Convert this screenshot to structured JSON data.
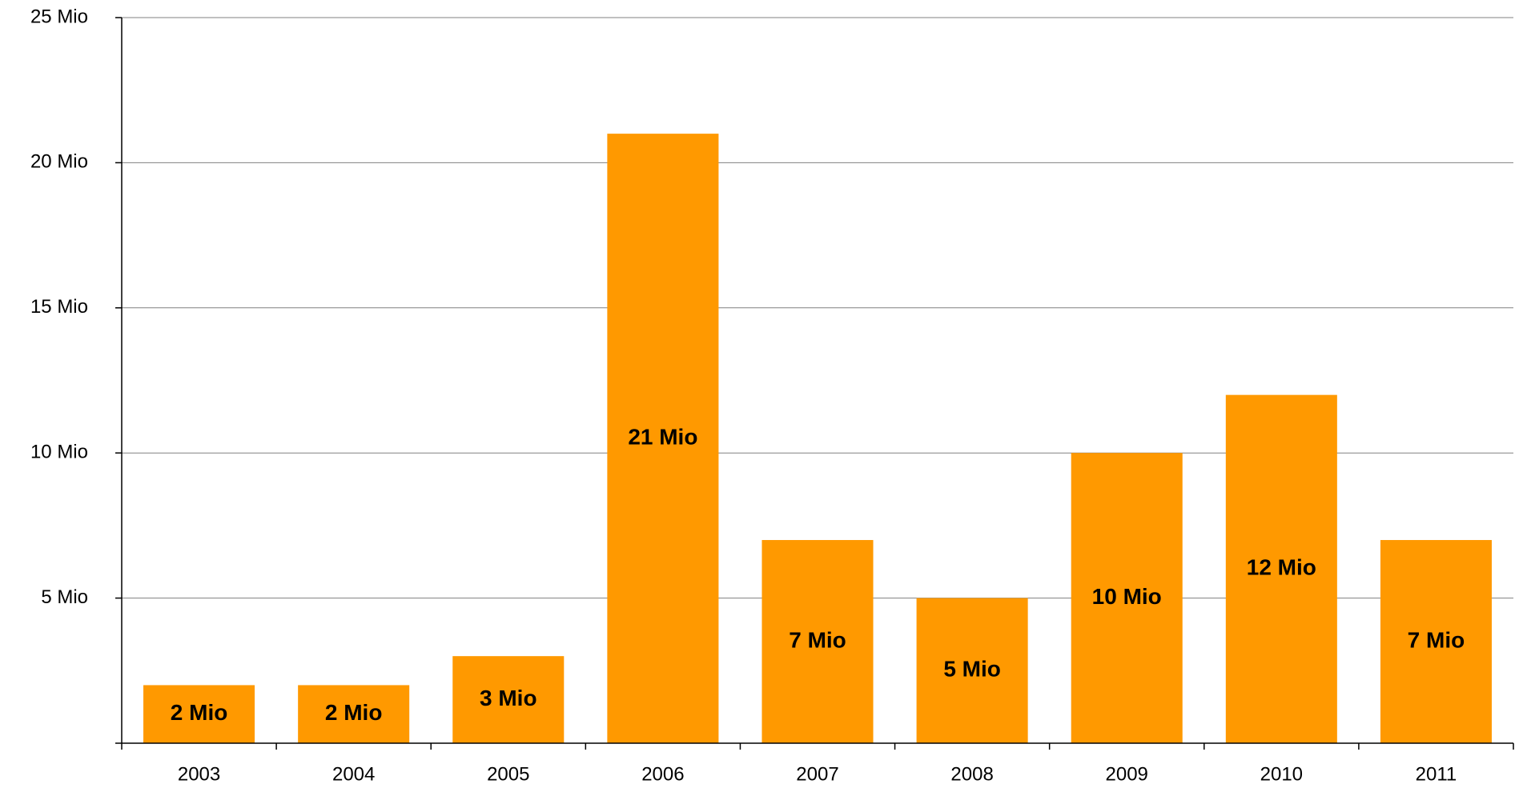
{
  "chart_data": {
    "type": "bar",
    "categories": [
      "2003",
      "2004",
      "2005",
      "2006",
      "2007",
      "2008",
      "2009",
      "2010",
      "2011"
    ],
    "values": [
      2,
      2,
      3,
      21,
      7,
      5,
      10,
      12,
      7
    ],
    "value_labels": [
      "2 Mio",
      "2 Mio",
      "3 Mio",
      "21 Mio",
      "7 Mio",
      "5 Mio",
      "10 Mio",
      "12 Mio",
      "7 Mio"
    ],
    "color": "#ff9900",
    "ylim": [
      0,
      25
    ],
    "yticks": [
      {
        "value": 5,
        "label": "5 Mio"
      },
      {
        "value": 10,
        "label": "10 Mio"
      },
      {
        "value": 15,
        "label": "15 Mio"
      },
      {
        "value": 20,
        "label": "20 Mio"
      },
      {
        "value": 25,
        "label": "25 Mio"
      }
    ],
    "grid": true
  }
}
